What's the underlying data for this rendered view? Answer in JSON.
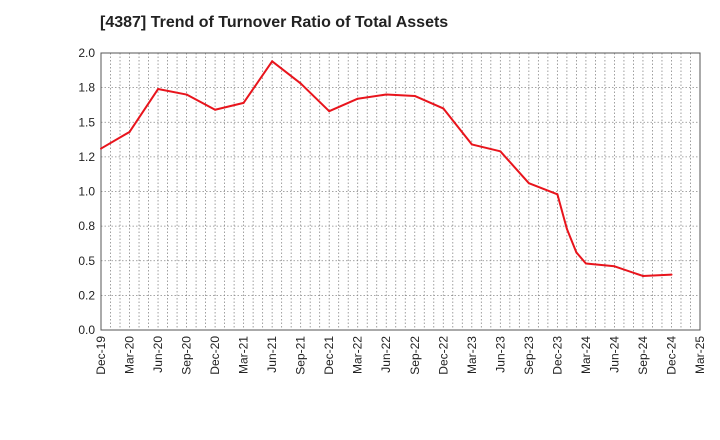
{
  "chart_data": {
    "type": "line",
    "title": "[4387]  Trend of Turnover Ratio of Total Assets",
    "xlabel": "",
    "ylabel": "",
    "ylim": [
      0.0,
      2.0
    ],
    "y_ticks": [
      "0.0",
      "0.2",
      "0.5",
      "0.8",
      "1.0",
      "1.2",
      "1.5",
      "1.8",
      "2.0"
    ],
    "y_tick_values": [
      0.0,
      0.25,
      0.5,
      0.75,
      1.0,
      1.25,
      1.5,
      1.75,
      2.0
    ],
    "x_ticks": [
      "Dec-19",
      "Mar-20",
      "Jun-20",
      "Sep-20",
      "Dec-20",
      "Mar-21",
      "Jun-21",
      "Sep-21",
      "Dec-21",
      "Mar-22",
      "Jun-22",
      "Sep-22",
      "Dec-22",
      "Mar-23",
      "Jun-23",
      "Sep-23",
      "Dec-23",
      "Mar-24",
      "Jun-24",
      "Sep-24",
      "Dec-24",
      "Mar-25"
    ],
    "grid": true,
    "line_color": "#e8141c",
    "series": [
      {
        "x": [
          "Dec-19",
          "Mar-20",
          "Jun-20",
          "Sep-20",
          "Dec-20",
          "Mar-21",
          "Jun-21",
          "Sep-21",
          "Dec-21",
          "Mar-22",
          "Jun-22",
          "Sep-22",
          "Dec-22",
          "Mar-23",
          "Jun-23",
          "Sep-23",
          "Dec-23",
          "Jan-24",
          "Feb-24",
          "Mar-24",
          "Jun-24",
          "Sep-24",
          "Dec-24"
        ],
        "values": [
          1.31,
          1.43,
          1.74,
          1.7,
          1.59,
          1.64,
          1.94,
          1.78,
          1.58,
          1.67,
          1.7,
          1.69,
          1.6,
          1.34,
          1.29,
          1.06,
          0.98,
          0.73,
          0.56,
          0.48,
          0.46,
          0.39,
          0.4
        ]
      }
    ]
  }
}
